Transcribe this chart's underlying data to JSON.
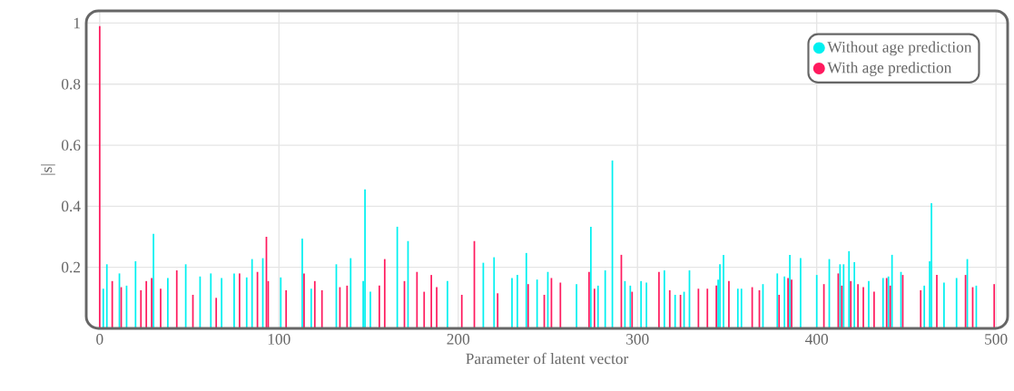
{
  "chart_data": {
    "type": "bar",
    "xlabel": "Parameter of latent vector",
    "ylabel": "|s|",
    "xlim": [
      -7.5,
      506.5
    ],
    "ylim": [
      0,
      1.04
    ],
    "xticks": [
      0,
      100,
      200,
      300,
      400,
      500
    ],
    "yticks": [
      0.2,
      0.4,
      0.6,
      0.8,
      1
    ],
    "grid": true,
    "legend": "top right",
    "series": [
      {
        "name": "Without age prediction",
        "color": "#00f0f0",
        "x": [
          2,
          4,
          11,
          15,
          20,
          30,
          38,
          48,
          56,
          62,
          68,
          75,
          82,
          85,
          91,
          101,
          113,
          118,
          132,
          140,
          147,
          148,
          151,
          166,
          172,
          194,
          214,
          220,
          230,
          233,
          238,
          244,
          250,
          266,
          274,
          278,
          282,
          286,
          293,
          296,
          302,
          305,
          315,
          321,
          326,
          329,
          345,
          346,
          348,
          356,
          358,
          370,
          378,
          382,
          385,
          391,
          400,
          407,
          413,
          415,
          418,
          421,
          429,
          437,
          440,
          442,
          447,
          460,
          463,
          464,
          471,
          478,
          484,
          489
        ],
        "values": [
          0.13,
          0.21,
          0.18,
          0.14,
          0.22,
          0.31,
          0.165,
          0.21,
          0.17,
          0.18,
          0.165,
          0.18,
          0.167,
          0.227,
          0.23,
          0.167,
          0.294,
          0.13,
          0.21,
          0.23,
          0.155,
          0.455,
          0.12,
          0.333,
          0.286,
          0.155,
          0.215,
          0.233,
          0.165,
          0.175,
          0.247,
          0.16,
          0.185,
          0.145,
          0.333,
          0.14,
          0.19,
          0.55,
          0.155,
          0.14,
          0.155,
          0.15,
          0.19,
          0.11,
          0.12,
          0.19,
          0.16,
          0.21,
          0.241,
          0.13,
          0.13,
          0.145,
          0.18,
          0.17,
          0.241,
          0.23,
          0.175,
          0.227,
          0.21,
          0.21,
          0.253,
          0.217,
          0.155,
          0.165,
          0.17,
          0.241,
          0.185,
          0.14,
          0.22,
          0.41,
          0.15,
          0.165,
          0.227,
          0.14
        ]
      },
      {
        "name": "With age prediction",
        "color": "#ff1a5e",
        "x": [
          0,
          7,
          12,
          23,
          26,
          29,
          34,
          43,
          52,
          65,
          78,
          88,
          93,
          94,
          104,
          114,
          120,
          124,
          134,
          138,
          156,
          159,
          170,
          177,
          181,
          185,
          188,
          202,
          209,
          222,
          239,
          248,
          252,
          257,
          273,
          276,
          291,
          297,
          312,
          318,
          324,
          334,
          339,
          344,
          351,
          364,
          368,
          379,
          384,
          386,
          404,
          412,
          414,
          419,
          423,
          426,
          432,
          439,
          441,
          448,
          458,
          467,
          483,
          487,
          499
        ],
        "values": [
          0.99,
          0.155,
          0.135,
          0.125,
          0.155,
          0.165,
          0.13,
          0.19,
          0.11,
          0.1,
          0.18,
          0.185,
          0.3,
          0.155,
          0.125,
          0.18,
          0.155,
          0.125,
          0.135,
          0.14,
          0.14,
          0.227,
          0.155,
          0.185,
          0.12,
          0.175,
          0.135,
          0.11,
          0.286,
          0.115,
          0.145,
          0.11,
          0.165,
          0.15,
          0.185,
          0.13,
          0.241,
          0.12,
          0.185,
          0.125,
          0.11,
          0.13,
          0.13,
          0.14,
          0.155,
          0.135,
          0.125,
          0.11,
          0.165,
          0.16,
          0.145,
          0.18,
          0.14,
          0.155,
          0.145,
          0.135,
          0.12,
          0.165,
          0.14,
          0.175,
          0.125,
          0.175,
          0.175,
          0.135,
          0.145
        ]
      }
    ]
  }
}
